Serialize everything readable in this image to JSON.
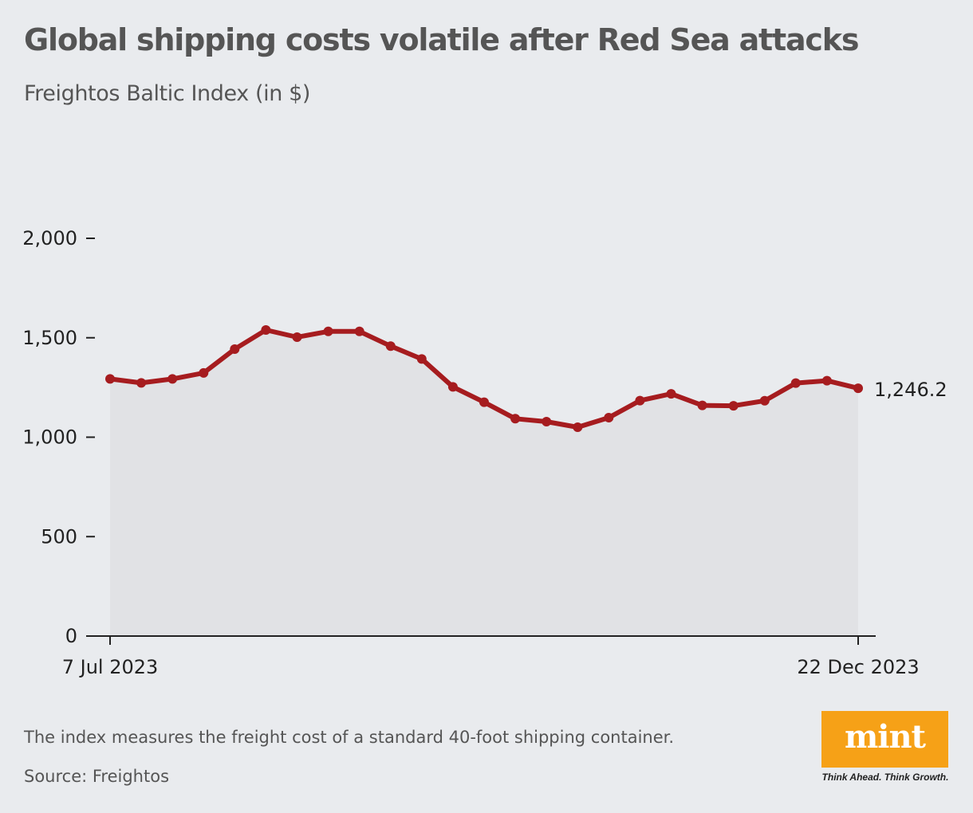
{
  "header": {
    "title": "Global shipping costs volatile after Red Sea attacks",
    "subtitle": "Freightos Baltic Index (in $)"
  },
  "footer": {
    "note": "The index measures the freight cost of a standard 40-foot shipping container.",
    "source": "Source: Freightos"
  },
  "logo": {
    "word": "mint",
    "tagline": "Think Ahead. Think Growth."
  },
  "colors": {
    "line": "#a61c1f",
    "area": "#e1e2e5",
    "background": "#e9ebee",
    "logo": "#f6a117"
  },
  "chart_data": {
    "type": "line",
    "title": "Global shipping costs volatile after Red Sea attacks",
    "subtitle": "Freightos Baltic Index (in $)",
    "xlabel": "",
    "ylabel": "",
    "ylim": [
      0,
      2000
    ],
    "yticks": [
      0,
      500,
      1000,
      1500,
      2000
    ],
    "ytick_labels": [
      "0",
      "500",
      "1,000",
      "1,500",
      "2,000"
    ],
    "x_start_label": "7 Jul 2023",
    "x_end_label": "22 Dec 2023",
    "end_value_label": "1,246.2",
    "grid": false,
    "area_fill": true,
    "series": [
      {
        "values": [
          1293,
          1273,
          1293,
          1323,
          1443,
          1539,
          1503,
          1532,
          1532,
          1458,
          1393,
          1253,
          1176,
          1093,
          1078,
          1050,
          1098,
          1184,
          1218,
          1160,
          1158,
          1183,
          1272,
          1284,
          1246.2
        ]
      }
    ]
  }
}
